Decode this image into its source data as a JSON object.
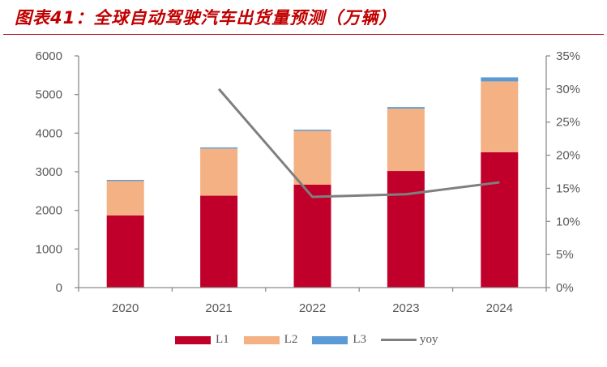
{
  "title": "图表41：全球自动驾驶汽车出货量预测（万辆）",
  "colors": {
    "L1": "#c0002b",
    "L2": "#f4b183",
    "L3": "#5b9bd5",
    "yoy": "#7f7f7f",
    "axis": "#8c8c8c",
    "title": "#c00000"
  },
  "chart_data": {
    "type": "bar",
    "stacked": true,
    "title": "图表41：全球自动驾驶汽车出货量预测（万辆）",
    "categories": [
      "2020",
      "2021",
      "2022",
      "2023",
      "2024"
    ],
    "series": [
      {
        "name": "L1",
        "type": "bar",
        "axis": "left",
        "values": [
          1870,
          2380,
          2665,
          3020,
          3505
        ]
      },
      {
        "name": "L2",
        "type": "bar",
        "axis": "left",
        "values": [
          890,
          1220,
          1395,
          1615,
          1835
        ]
      },
      {
        "name": "L3",
        "type": "bar",
        "axis": "left",
        "values": [
          30,
          30,
          30,
          40,
          105
        ]
      },
      {
        "name": "yoy",
        "type": "line",
        "axis": "right",
        "values": [
          null,
          0.3,
          0.137,
          0.141,
          0.159
        ]
      }
    ],
    "left_axis": {
      "min": 0,
      "max": 6000,
      "ticks": [
        "0",
        "1000",
        "2000",
        "3000",
        "4000",
        "5000",
        "6000"
      ]
    },
    "right_axis": {
      "min": 0,
      "max": 0.35,
      "ticks": [
        "0%",
        "5%",
        "10%",
        "15%",
        "20%",
        "25%",
        "30%",
        "35%"
      ]
    },
    "xlabel": "",
    "ylabel": "",
    "grid": false,
    "legend": {
      "position": "bottom",
      "entries": [
        "L1",
        "L2",
        "L3",
        "yoy"
      ]
    }
  }
}
